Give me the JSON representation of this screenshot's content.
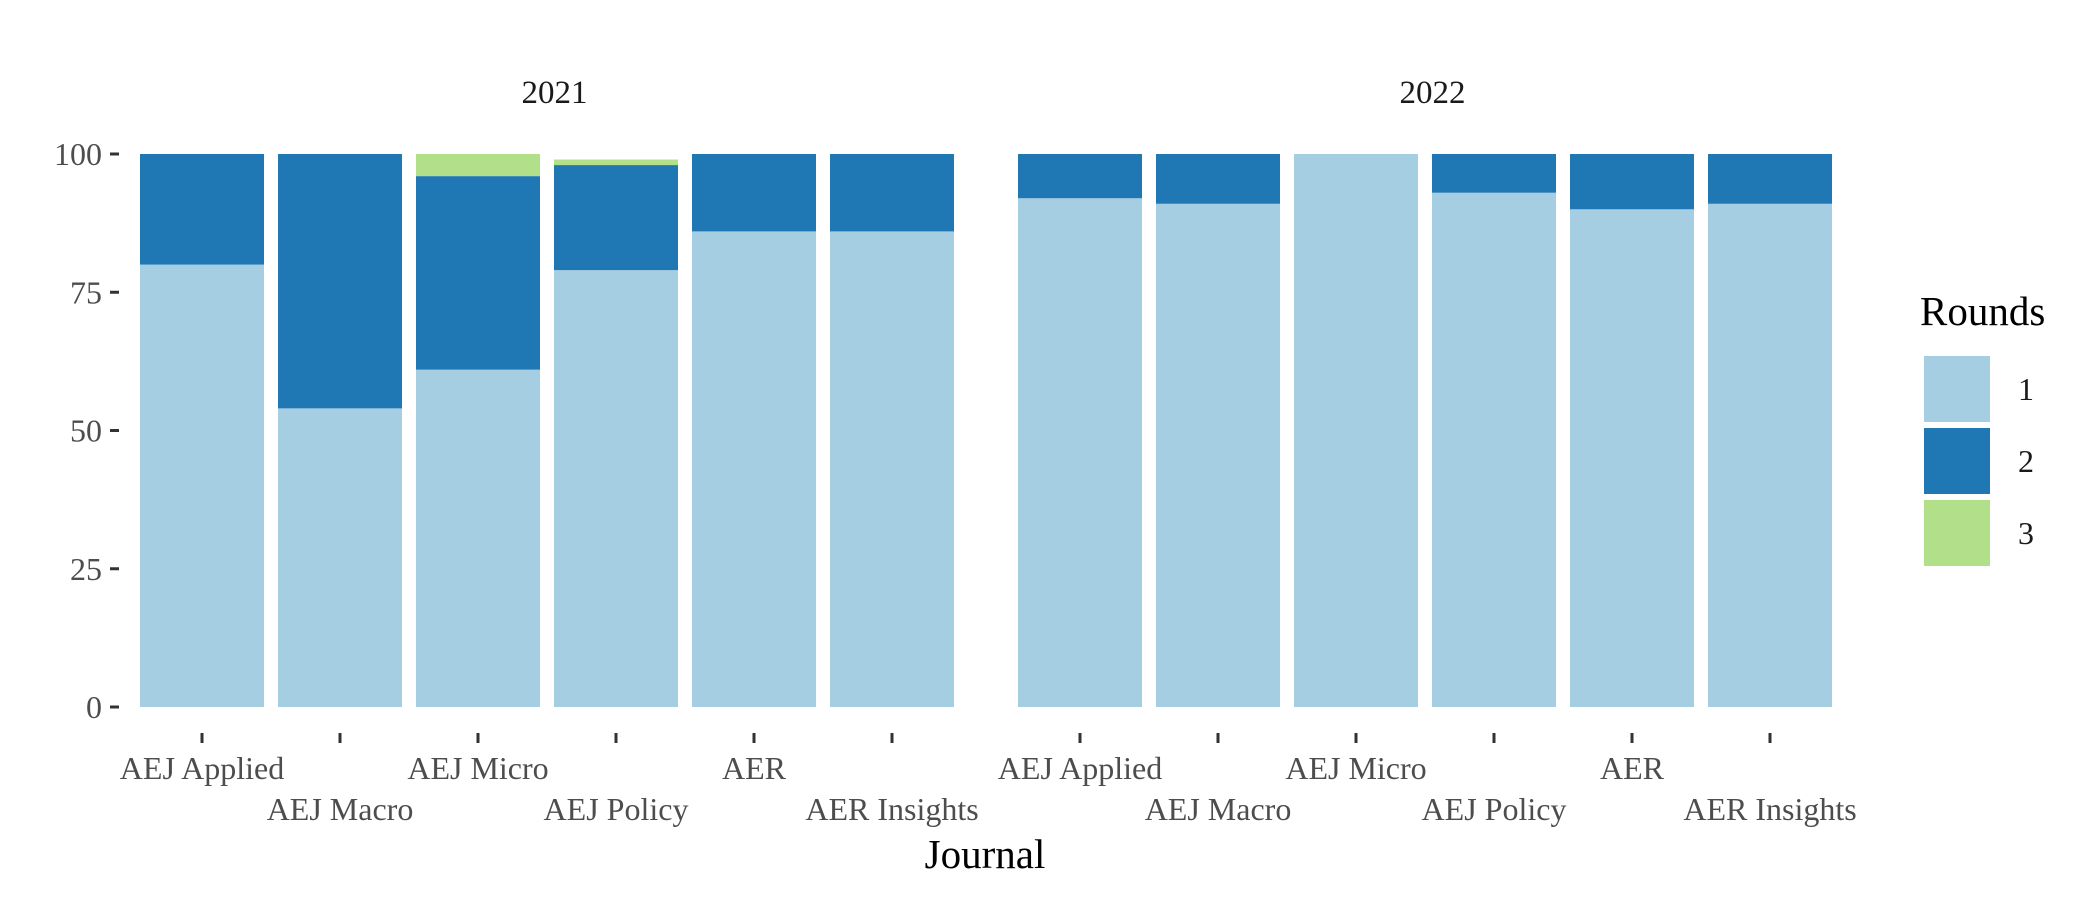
{
  "chart_data": {
    "type": "bar",
    "stacked": true,
    "xlabel": "Journal",
    "ylabel": "",
    "ylim": [
      0,
      100
    ],
    "yticks": [
      0,
      25,
      50,
      75,
      100
    ],
    "legend": {
      "title": "Rounds",
      "placement": "right",
      "entries": [
        {
          "label": "1",
          "color": "#a6cee3"
        },
        {
          "label": "2",
          "color": "#1f78b4"
        },
        {
          "label": "3",
          "color": "#b2df8a"
        }
      ]
    },
    "grid": false,
    "categories": [
      "AEJ Applied",
      "AEJ Macro",
      "AEJ Micro",
      "AEJ Policy",
      "AER",
      "AER Insights"
    ],
    "panels": [
      {
        "title": "2021",
        "series": [
          {
            "name": "1",
            "values": [
              80,
              54,
              61,
              79,
              86,
              86
            ]
          },
          {
            "name": "2",
            "values": [
              20,
              46,
              35,
              19,
              14,
              14
            ]
          },
          {
            "name": "3",
            "values": [
              0,
              0,
              4,
              1,
              0,
              0
            ]
          }
        ]
      },
      {
        "title": "2022",
        "series": [
          {
            "name": "1",
            "values": [
              92,
              91,
              100,
              93,
              90,
              91
            ]
          },
          {
            "name": "2",
            "values": [
              8,
              9,
              0,
              7,
              10,
              9
            ]
          },
          {
            "name": "3",
            "values": [
              0,
              0,
              0,
              0,
              0,
              0
            ]
          }
        ]
      }
    ]
  }
}
